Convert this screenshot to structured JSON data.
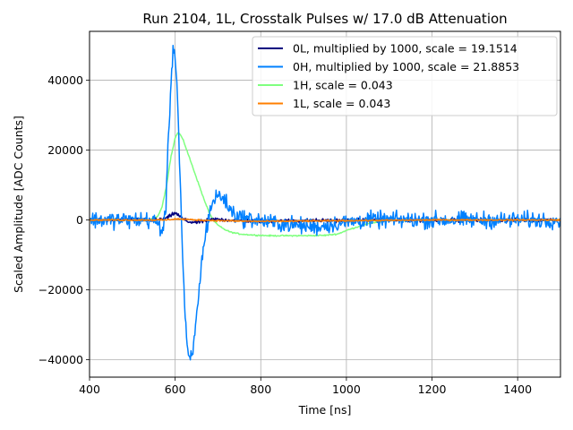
{
  "chart_data": {
    "type": "line",
    "title": "Run 2104, 1L, Crosstalk Pulses w/ 17.0 dB Attenuation",
    "xlabel": "Time [ns]",
    "ylabel": "Scaled Amplitude [ADC Counts]",
    "xlim": [
      400,
      1500
    ],
    "ylim": [
      -45000,
      54000
    ],
    "xticks": [
      400,
      600,
      800,
      1000,
      1200,
      1400
    ],
    "yticks": [
      -40000,
      -20000,
      0,
      20000,
      40000
    ],
    "xtick_labels": [
      "400",
      "600",
      "800",
      "1000",
      "1200",
      "1400"
    ],
    "ytick_labels": [
      "−40000",
      "−20000",
      "0",
      "20000",
      "40000"
    ],
    "grid": true,
    "legend_position": "top-right",
    "series": [
      {
        "name": "0L, multiplied by 1000,  scale = 19.1514",
        "color": "#00007f",
        "noise": 300,
        "x": [
          400,
          560,
          580,
          590,
          598,
          605,
          615,
          630,
          650,
          670,
          690,
          720,
          760,
          800,
          900,
          1000,
          1100,
          1200,
          1300,
          1400,
          1500
        ],
        "y": [
          0,
          0,
          500,
          1200,
          2000,
          1600,
          600,
          -500,
          -700,
          -300,
          200,
          0,
          -200,
          -300,
          -200,
          -100,
          0,
          0,
          0,
          0,
          0
        ]
      },
      {
        "name": "0H, multiplied by 1000,  scale = 21.8853",
        "color": "#0080ff",
        "noise": 1300,
        "x": [
          400,
          540,
          560,
          570,
          578,
          585,
          592,
          597,
          602,
          607,
          612,
          618,
          624,
          630,
          636,
          642,
          650,
          660,
          672,
          685,
          698,
          712,
          725,
          740,
          760,
          790,
          830,
          880,
          930,
          980,
          1050,
          1100,
          1200,
          1300,
          1400,
          1500
        ],
        "y": [
          0,
          0,
          -1000,
          -3500,
          3000,
          25000,
          44000,
          49500,
          45000,
          30000,
          10000,
          -12000,
          -30000,
          -39000,
          -40500,
          -37000,
          -28000,
          -14000,
          -3000,
          4500,
          7000,
          6500,
          3500,
          1500,
          500,
          0,
          -800,
          -1500,
          -2000,
          -1000,
          0,
          0,
          0,
          0,
          0,
          0
        ]
      },
      {
        "name": "1H,  scale = 0.043",
        "color": "#7fff7f",
        "noise": 100,
        "x": [
          400,
          540,
          560,
          570,
          580,
          590,
          600,
          606,
          612,
          620,
          630,
          640,
          650,
          660,
          670,
          680,
          690,
          700,
          715,
          730,
          750,
          780,
          820,
          900,
          950,
          980,
          1000,
          1030,
          1060,
          1100,
          1150,
          1200,
          1300,
          1400,
          1500
        ],
        "y": [
          0,
          0,
          1000,
          4000,
          10000,
          18000,
          23500,
          25000,
          24500,
          22500,
          19000,
          15500,
          12000,
          8500,
          5000,
          2000,
          -200,
          -1500,
          -2700,
          -3500,
          -4000,
          -4300,
          -4500,
          -4500,
          -4400,
          -4000,
          -3000,
          -1800,
          -800,
          -200,
          0,
          0,
          0,
          0,
          0
        ]
      },
      {
        "name": "1L,  scale = 0.043",
        "color": "#ff7f00",
        "noise": 120,
        "x": [
          400,
          580,
          600,
          620,
          650,
          700,
          750,
          800,
          900,
          1000,
          1100,
          1200,
          1300,
          1400,
          1500
        ],
        "y": [
          0,
          0,
          300,
          200,
          0,
          -200,
          -300,
          -400,
          -300,
          -200,
          -100,
          0,
          0,
          0,
          0
        ]
      }
    ]
  }
}
